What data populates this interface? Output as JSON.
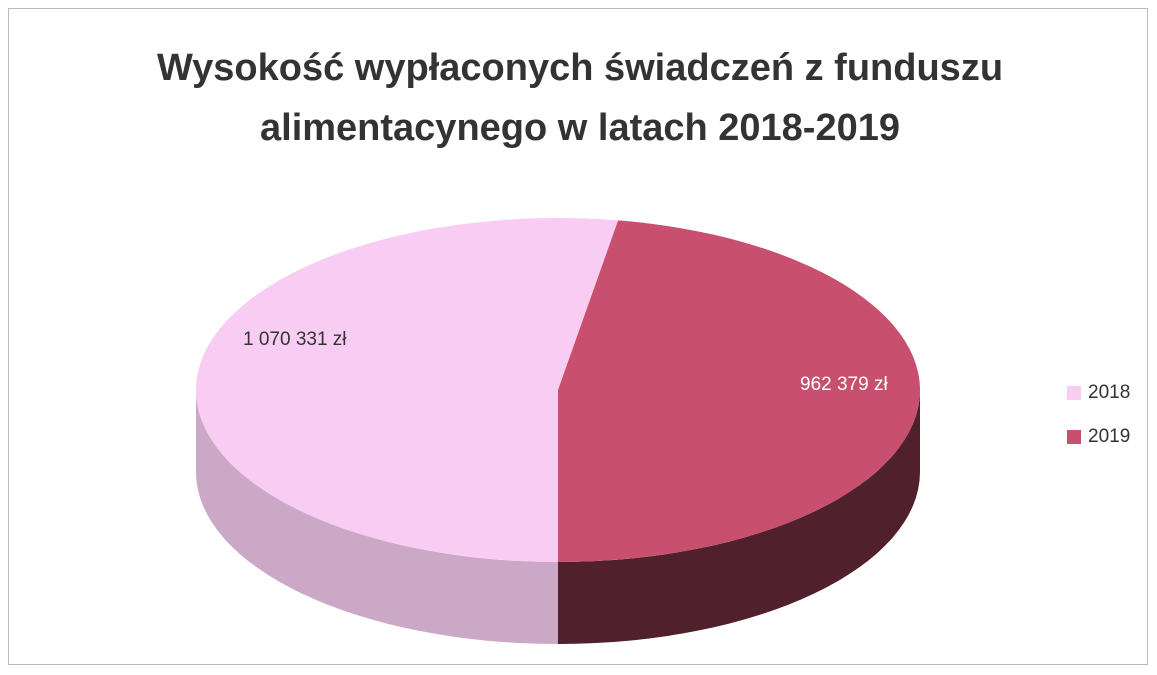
{
  "chart_data": {
    "type": "pie3d",
    "title": "Wysokość wypłaconych świadczeń z funduszu alimentacynego w latach 2018-2019",
    "categories": [
      "2018",
      "2019"
    ],
    "values": [
      1070331,
      962379
    ],
    "value_labels": [
      "1 070 331 zł",
      "962 379 zł"
    ],
    "colors": [
      "#f9cdf3",
      "#c8506e"
    ],
    "legend": "right"
  }
}
